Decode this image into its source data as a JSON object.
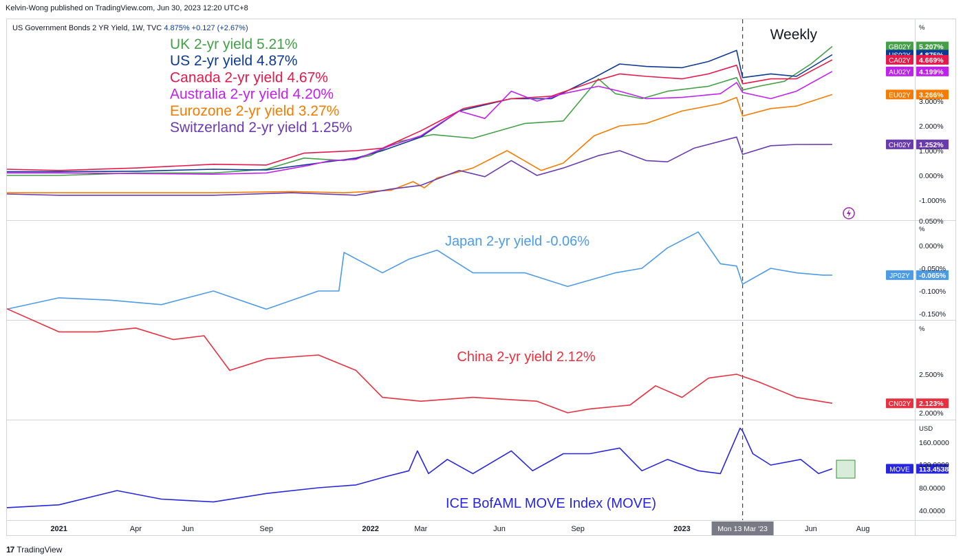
{
  "header": {
    "publisher": "Kelvin-Wong published on TradingView.com, Jun 30, 2023 12:20 UTC+8"
  },
  "footer": {
    "brand": "TradingView",
    "logo": "17"
  },
  "symbol_bar": {
    "name": "US Government Bonds 2 YR Yield, 1W, TVC",
    "price": "4.875%",
    "change": "+0.127 (+2.67%)"
  },
  "annotations": {
    "weekly": "Weekly",
    "crosshair_date": "Mon 13 Mar '23",
    "alert_icon": "lightning-icon"
  },
  "colors": {
    "uk": "#43a047",
    "us": "#0d3a94",
    "ca": "#e6194b",
    "au": "#c020f0",
    "eu": "#f57c00",
    "ch": "#6a3bb0",
    "jp": "#4c9be8",
    "cn": "#e8303e",
    "move": "#2626e0",
    "axis_text": "#131722",
    "grid_border": "#d1d4dc"
  },
  "chart_data": [
    {
      "type": "line",
      "pane": "main",
      "unit_label": "%",
      "ylim": [
        -1.0,
        6.0
      ],
      "y_ticks": [
        "3.000%",
        "2.000%",
        "1.000%",
        "0.000%",
        "-1.000%"
      ],
      "legend": [
        "UK 2-yr yield 5.21%",
        "US 2-yr yield 4.87%",
        "Canada 2-yr yield 4.67%",
        "Australia  2-yr yield 4.20%",
        "Eurozone  2-yr yield 3.27%",
        "Switzerland  2-yr yield 1.25%"
      ],
      "series": [
        {
          "name": "GB02Y",
          "label": "5.207%",
          "color": "#43a047",
          "x": [
            "2020-11-01",
            "2021-01-01",
            "2021-04-01",
            "2021-07-01",
            "2021-09-01",
            "2021-10-15",
            "2021-12-01",
            "2022-01-01",
            "2022-02-01",
            "2022-03-15",
            "2022-05-01",
            "2022-07-01",
            "2022-08-15",
            "2022-09-25",
            "2022-10-15",
            "2022-11-15",
            "2022-12-15",
            "2023-02-01",
            "2023-03-06",
            "2023-03-13",
            "2023-04-01",
            "2023-05-01",
            "2023-06-01",
            "2023-06-26"
          ],
          "y": [
            0.0,
            0.0,
            0.1,
            0.1,
            0.25,
            0.7,
            0.6,
            0.8,
            1.35,
            1.65,
            1.5,
            2.1,
            2.2,
            3.9,
            3.3,
            3.1,
            3.4,
            3.6,
            3.95,
            3.45,
            3.6,
            3.8,
            4.5,
            5.207
          ]
        },
        {
          "name": "US02Y",
          "label": "4.875%",
          "color": "#0d3a94",
          "x": [
            "2020-11-01",
            "2021-01-01",
            "2021-04-01",
            "2021-07-01",
            "2021-09-01",
            "2021-11-01",
            "2021-12-15",
            "2022-01-15",
            "2022-03-01",
            "2022-04-15",
            "2022-06-15",
            "2022-08-01",
            "2022-09-20",
            "2022-10-20",
            "2022-11-20",
            "2023-01-01",
            "2023-02-01",
            "2023-03-06",
            "2023-03-13",
            "2023-04-15",
            "2023-05-15",
            "2023-06-26"
          ],
          "y": [
            0.15,
            0.15,
            0.17,
            0.25,
            0.22,
            0.5,
            0.7,
            1.0,
            1.55,
            2.6,
            3.1,
            3.1,
            3.95,
            4.5,
            4.4,
            4.35,
            4.6,
            5.05,
            3.95,
            4.1,
            4.0,
            4.875
          ]
        },
        {
          "name": "CA02Y",
          "label": "4.669%",
          "color": "#e6194b",
          "x": [
            "2020-11-01",
            "2021-01-01",
            "2021-04-01",
            "2021-07-01",
            "2021-09-01",
            "2021-10-15",
            "2021-12-15",
            "2022-01-15",
            "2022-03-01",
            "2022-04-20",
            "2022-06-15",
            "2022-08-01",
            "2022-09-20",
            "2022-10-20",
            "2022-11-20",
            "2023-01-01",
            "2023-02-01",
            "2023-03-06",
            "2023-03-13",
            "2023-04-15",
            "2023-05-15",
            "2023-06-26"
          ],
          "y": [
            0.25,
            0.2,
            0.3,
            0.45,
            0.42,
            0.9,
            1.0,
            1.1,
            1.8,
            2.7,
            3.1,
            3.2,
            3.8,
            4.1,
            4.0,
            3.9,
            4.1,
            4.45,
            3.7,
            3.9,
            3.9,
            4.669
          ]
        },
        {
          "name": "AU02Y",
          "label": "4.199%",
          "color": "#c020f0",
          "x": [
            "2020-11-01",
            "2021-01-01",
            "2021-07-01",
            "2021-09-01",
            "2021-10-20",
            "2021-11-15",
            "2021-12-15",
            "2022-01-20",
            "2022-03-01",
            "2022-04-15",
            "2022-05-15",
            "2022-06-15",
            "2022-07-15",
            "2022-08-15",
            "2022-09-25",
            "2022-10-20",
            "2022-11-20",
            "2023-01-01",
            "2023-02-15",
            "2023-03-06",
            "2023-03-13",
            "2023-04-15",
            "2023-05-15",
            "2023-06-26"
          ],
          "y": [
            0.1,
            0.1,
            0.05,
            0.1,
            0.4,
            0.6,
            0.65,
            1.15,
            1.6,
            2.6,
            2.3,
            3.4,
            3.0,
            3.3,
            3.6,
            3.4,
            3.1,
            3.15,
            3.3,
            3.75,
            3.35,
            3.1,
            3.4,
            4.199
          ]
        },
        {
          "name": "EU02Y",
          "label": "3.266%",
          "color": "#f57c00",
          "x": [
            "2020-11-01",
            "2021-01-01",
            "2021-07-01",
            "2021-10-01",
            "2021-12-01",
            "2022-01-25",
            "2022-02-20",
            "2022-03-05",
            "2022-03-20",
            "2022-05-01",
            "2022-06-10",
            "2022-07-20",
            "2022-08-15",
            "2022-09-20",
            "2022-10-20",
            "2022-11-20",
            "2023-01-01",
            "2023-02-15",
            "2023-03-06",
            "2023-03-13",
            "2023-04-15",
            "2023-05-15",
            "2023-06-26"
          ],
          "y": [
            -0.7,
            -0.7,
            -0.7,
            -0.65,
            -0.7,
            -0.6,
            -0.25,
            -0.5,
            -0.1,
            0.3,
            1.0,
            0.2,
            0.5,
            1.6,
            2.0,
            2.1,
            2.6,
            2.9,
            3.15,
            2.4,
            2.7,
            2.8,
            3.266
          ]
        },
        {
          "name": "CH02Y",
          "label": "1.252%",
          "color": "#6a3bb0",
          "x": [
            "2020-11-01",
            "2021-01-01",
            "2021-07-01",
            "2021-10-01",
            "2021-12-15",
            "2022-01-25",
            "2022-03-01",
            "2022-04-15",
            "2022-05-15",
            "2022-06-15",
            "2022-07-15",
            "2022-08-15",
            "2022-09-25",
            "2022-10-20",
            "2022-11-20",
            "2022-12-15",
            "2023-01-15",
            "2023-03-06",
            "2023-03-13",
            "2023-04-15",
            "2023-05-15",
            "2023-06-26"
          ],
          "y": [
            -0.75,
            -0.8,
            -0.8,
            -0.7,
            -0.8,
            -0.55,
            -0.4,
            0.2,
            -0.05,
            0.6,
            0.0,
            0.3,
            0.8,
            1.0,
            0.6,
            0.55,
            1.1,
            1.55,
            0.85,
            1.2,
            1.25,
            1.252
          ]
        }
      ]
    },
    {
      "type": "line",
      "pane": "japan",
      "unit_label": "%",
      "title": "Japan 2-yr yield -0.06%",
      "ylim": [
        -0.158,
        0.016
      ],
      "y_ticks": [
        "0.000%",
        "-0.050%",
        "-0.100%",
        "-0.150%"
      ],
      "top_tick_partial": "0.050%",
      "series": [
        {
          "name": "JP02Y",
          "label": "-0.065%",
          "color": "#4c9be8",
          "x": [
            "2020-11-01",
            "2021-01-01",
            "2021-03-01",
            "2021-05-01",
            "2021-07-01",
            "2021-09-01",
            "2021-11-01",
            "2021-11-25",
            "2021-12-01",
            "2022-01-15",
            "2022-02-15",
            "2022-03-20",
            "2022-05-01",
            "2022-07-01",
            "2022-08-20",
            "2022-10-15",
            "2022-11-15",
            "2022-12-15",
            "2023-01-20",
            "2023-02-15",
            "2023-03-06",
            "2023-03-13",
            "2023-04-15",
            "2023-05-15",
            "2023-06-15",
            "2023-06-26"
          ],
          "y": [
            -0.14,
            -0.115,
            -0.12,
            -0.13,
            -0.1,
            -0.14,
            -0.1,
            -0.1,
            -0.015,
            -0.06,
            -0.03,
            -0.01,
            -0.06,
            -0.06,
            -0.09,
            -0.06,
            -0.05,
            -0.005,
            0.03,
            -0.04,
            -0.045,
            -0.085,
            -0.05,
            -0.06,
            -0.065,
            -0.065
          ]
        }
      ]
    },
    {
      "type": "line",
      "pane": "china",
      "unit_label": "%",
      "title": "China 2-yr yield 2.12%",
      "ylim": [
        2.0,
        3.5
      ],
      "y_ticks": [
        "2.500%",
        "2.000%"
      ],
      "series": [
        {
          "name": "CN02Y",
          "label": "2.123%",
          "color": "#e8303e",
          "x": [
            "2020-11-01",
            "2021-01-01",
            "2021-02-15",
            "2021-04-01",
            "2021-05-15",
            "2021-06-20",
            "2021-07-20",
            "2021-09-01",
            "2021-11-01",
            "2021-12-15",
            "2022-01-15",
            "2022-03-01",
            "2022-05-01",
            "2022-07-15",
            "2022-08-20",
            "2022-09-15",
            "2022-11-01",
            "2022-12-01",
            "2023-01-01",
            "2023-02-01",
            "2023-03-06",
            "2023-04-01",
            "2023-05-15",
            "2023-06-26"
          ],
          "y": [
            3.35,
            3.05,
            3.05,
            3.1,
            2.95,
            3.0,
            2.55,
            2.7,
            2.75,
            2.55,
            2.2,
            2.15,
            2.2,
            2.15,
            2.0,
            2.05,
            2.1,
            2.35,
            2.2,
            2.45,
            2.5,
            2.4,
            2.2,
            2.123
          ]
        }
      ]
    },
    {
      "type": "line",
      "pane": "move",
      "unit_label": "USD",
      "title": "ICE BofAML MOVE Index (MOVE)",
      "ylim": [
        35,
        190
      ],
      "y_ticks": [
        "160.0000",
        "80.0000",
        "40.0000"
      ],
      "partial_tick": "120.0000",
      "series": [
        {
          "name": "MOVE",
          "label": "113.4538",
          "color": "#2626e0",
          "x": [
            "2020-11-01",
            "2021-01-01",
            "2021-03-10",
            "2021-05-01",
            "2021-07-01",
            "2021-09-01",
            "2021-11-01",
            "2021-12-15",
            "2022-01-20",
            "2022-02-15",
            "2022-02-25",
            "2022-03-10",
            "2022-04-01",
            "2022-05-01",
            "2022-06-15",
            "2022-07-10",
            "2022-08-15",
            "2022-09-15",
            "2022-10-20",
            "2022-11-15",
            "2022-12-15",
            "2023-01-20",
            "2023-02-15",
            "2023-03-10",
            "2023-03-13",
            "2023-03-25",
            "2023-04-15",
            "2023-05-20",
            "2023-06-10",
            "2023-06-26"
          ],
          "y": [
            45,
            50,
            75,
            60,
            55,
            70,
            80,
            85,
            100,
            110,
            145,
            105,
            130,
            105,
            145,
            110,
            140,
            140,
            150,
            110,
            130,
            110,
            105,
            185,
            180,
            140,
            120,
            130,
            105,
            113.4538
          ]
        }
      ]
    }
  ],
  "x_axis": {
    "labels": [
      {
        "text": "2021",
        "date": "2021-01-01"
      },
      {
        "text": "Apr",
        "date": "2021-04-01"
      },
      {
        "text": "Jun",
        "date": "2021-06-01"
      },
      {
        "text": "Sep",
        "date": "2021-09-01"
      },
      {
        "text": "2022",
        "date": "2022-01-01"
      },
      {
        "text": "Mar",
        "date": "2022-03-01"
      },
      {
        "text": "Jun",
        "date": "2022-06-01"
      },
      {
        "text": "Sep",
        "date": "2022-09-01"
      },
      {
        "text": "2023",
        "date": "2023-01-01"
      },
      {
        "text": "Jun",
        "date": "2023-06-01"
      },
      {
        "text": "Aug",
        "date": "2023-08-01"
      }
    ],
    "range": [
      "2020-11-01",
      "2023-09-30"
    ]
  }
}
